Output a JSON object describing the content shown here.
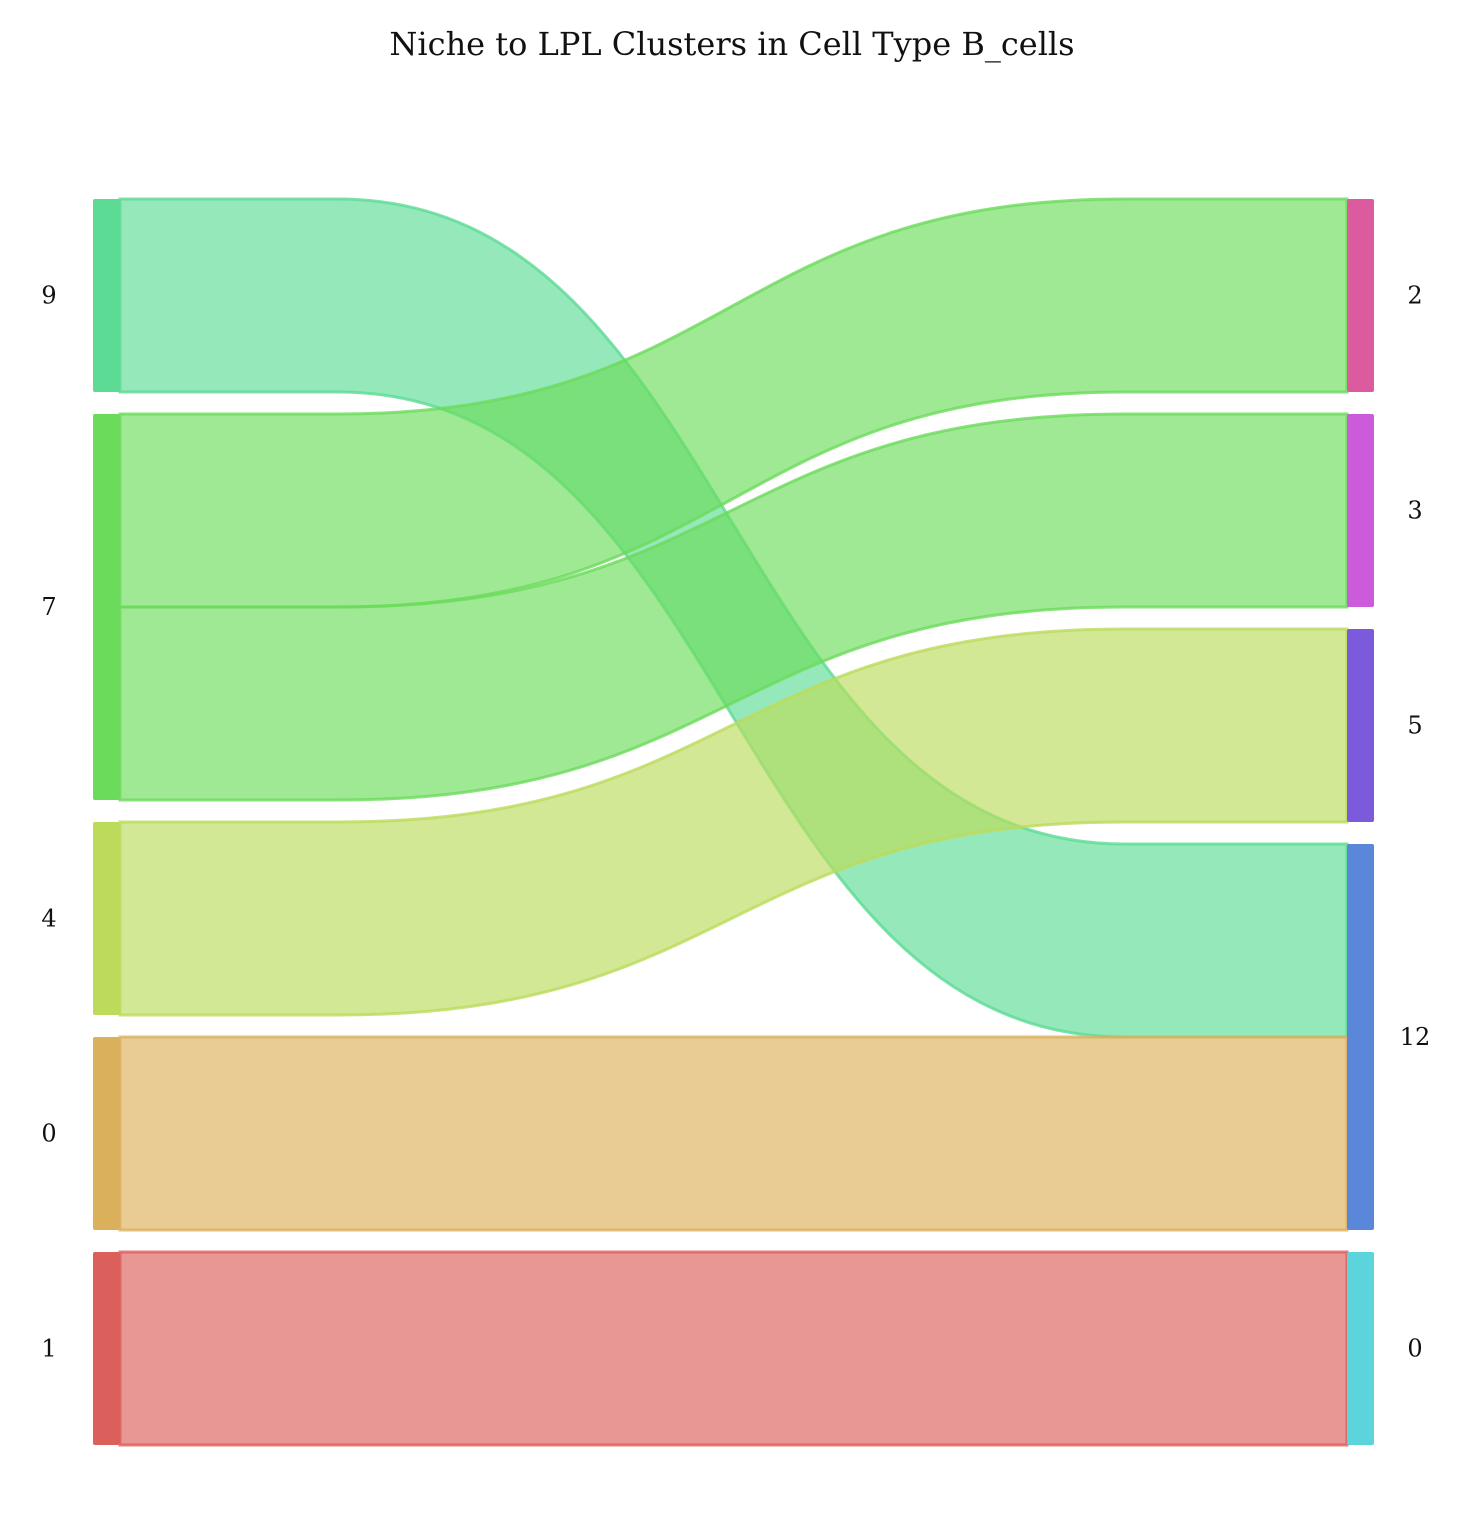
{
  "title": "Niche to LPL Clusters in Cell Type B_cells",
  "chart_data": {
    "type": "sankey",
    "title": "Niche to LPL Clusters in Cell Type B_cells",
    "left_nodes": [
      {
        "id": "L9",
        "label": "9",
        "value": 1,
        "color": "#5cdb95"
      },
      {
        "id": "L7",
        "label": "7",
        "value": 2,
        "color": "#6bdb5b"
      },
      {
        "id": "L4",
        "label": "4",
        "value": 1,
        "color": "#bcdb5b"
      },
      {
        "id": "L0",
        "label": "0",
        "value": 1,
        "color": "#dbb05b"
      },
      {
        "id": "L1",
        "label": "1",
        "value": 1,
        "color": "#db5f5b"
      }
    ],
    "right_nodes": [
      {
        "id": "R2",
        "label": "2",
        "value": 1,
        "color": "#db5b9e"
      },
      {
        "id": "R3",
        "label": "3",
        "value": 1,
        "color": "#cb5bdb"
      },
      {
        "id": "R5",
        "label": "5",
        "value": 1,
        "color": "#7b5bdb"
      },
      {
        "id": "R12",
        "label": "12",
        "value": 2,
        "color": "#5b87db"
      },
      {
        "id": "R0",
        "label": "0",
        "value": 1,
        "color": "#5bd4db"
      }
    ],
    "links": [
      {
        "source": "L9",
        "target": "R12",
        "value": 1,
        "color": "#5cdb95"
      },
      {
        "source": "L7",
        "target": "R2",
        "value": 1,
        "color": "#6bdb5b"
      },
      {
        "source": "L7",
        "target": "R3",
        "value": 1,
        "color": "#6bdb5b"
      },
      {
        "source": "L4",
        "target": "R5",
        "value": 1,
        "color": "#bcdb5b"
      },
      {
        "source": "L0",
        "target": "R12",
        "value": 1,
        "color": "#dbb05b"
      },
      {
        "source": "L1",
        "target": "R0",
        "value": 1,
        "color": "#db5f5b"
      }
    ]
  }
}
